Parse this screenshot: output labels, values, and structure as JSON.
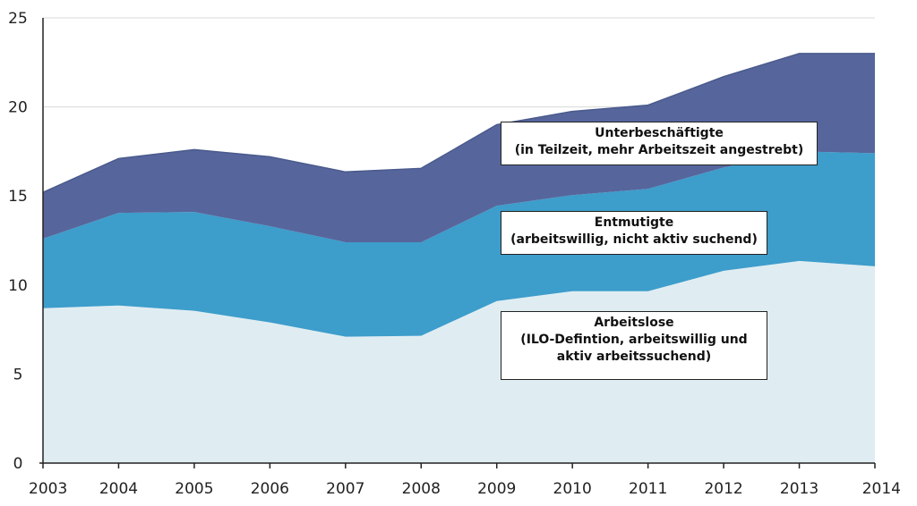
{
  "chart_data": {
    "type": "area",
    "stacked": true,
    "x": [
      "2003",
      "2004",
      "2005",
      "2006",
      "2007",
      "2008",
      "2009",
      "2010",
      "2011",
      "2012",
      "2013",
      "2014"
    ],
    "ylim": [
      0,
      25
    ],
    "yticks": [
      0,
      5,
      10,
      15,
      20,
      25
    ],
    "grid": true,
    "series": [
      {
        "name": "Arbeitslose",
        "label_lines": [
          "Arbeitslose",
          "(ILO-Defintion, arbeitswillig und",
          "aktiv arbeitssuchend)"
        ],
        "color": "#dfedf2",
        "values": [
          8.7,
          8.85,
          8.55,
          7.9,
          7.1,
          7.15,
          9.1,
          9.65,
          9.65,
          10.8,
          11.35,
          11.05
        ]
      },
      {
        "name": "Entmutigte",
        "label_lines": [
          "Entmutigte",
          "(arbeitswillig, nicht aktiv suchend)"
        ],
        "color": "#3d9dcb",
        "values": [
          3.9,
          5.2,
          5.55,
          5.4,
          5.3,
          5.25,
          5.35,
          5.4,
          5.75,
          5.8,
          6.15,
          6.35
        ]
      },
      {
        "name": "Unterbeschäftigte",
        "label_lines": [
          "Unterbeschäftigte",
          "(in Teilzeit, mehr Arbeitszeit angestrebt)"
        ],
        "color": "#56669c",
        "values": [
          2.6,
          3.05,
          3.5,
          3.9,
          3.95,
          4.15,
          4.55,
          4.7,
          4.7,
          5.1,
          5.5,
          5.6
        ]
      }
    ]
  }
}
